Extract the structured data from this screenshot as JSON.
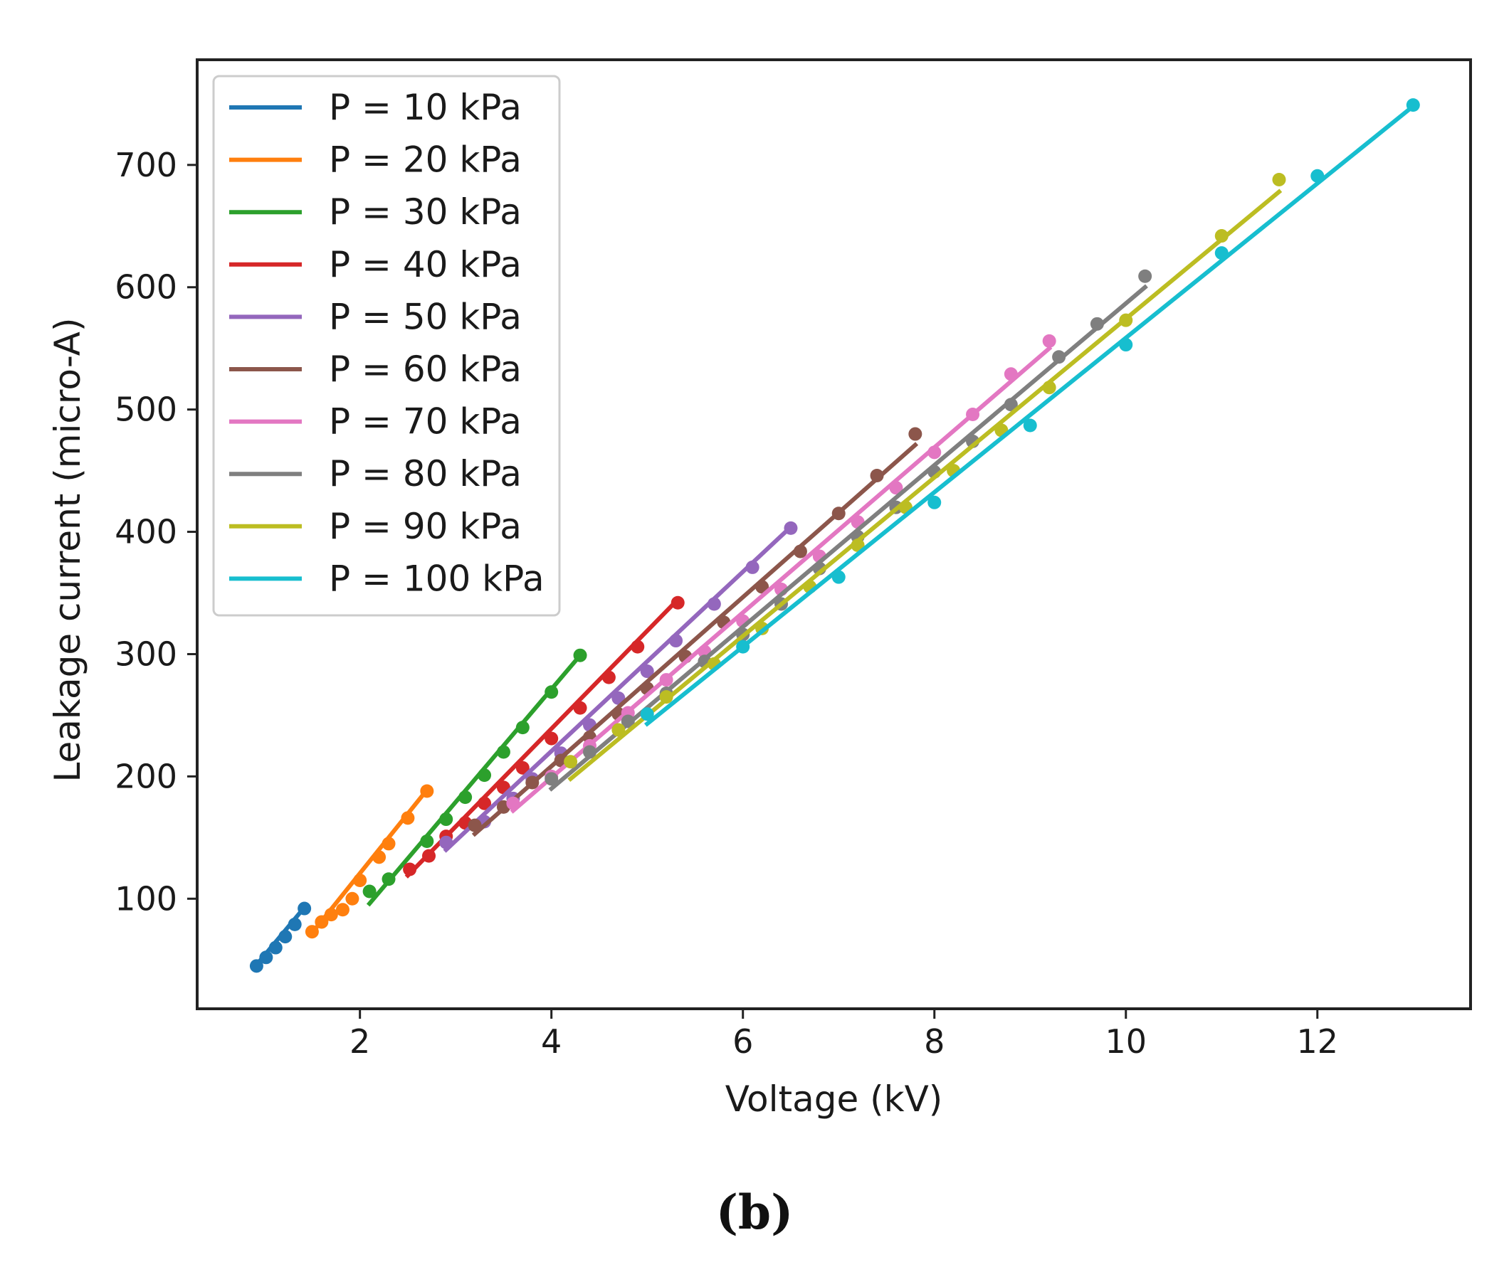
{
  "chart_data": {
    "type": "scatter",
    "title": "",
    "xlabel": "Voltage (kV)",
    "ylabel": "Leakage current (micro-A)",
    "xlim": [
      0.3,
      13.6
    ],
    "ylim": [
      10,
      786
    ],
    "xticks": [
      2,
      4,
      6,
      8,
      10,
      12
    ],
    "yticks": [
      100,
      200,
      300,
      400,
      500,
      600,
      700
    ],
    "legend_position": "top-left",
    "series": [
      {
        "name": "P = 10 kPa",
        "color": "#1f77b4",
        "fit": [
          [
            0.9,
            44
          ],
          [
            1.4,
            91
          ]
        ],
        "points": [
          [
            0.92,
            45
          ],
          [
            1.02,
            52
          ],
          [
            1.12,
            60
          ],
          [
            1.22,
            69
          ],
          [
            1.32,
            79
          ],
          [
            1.42,
            92
          ]
        ]
      },
      {
        "name": "P = 20 kPa",
        "color": "#ff7f0e",
        "fit": [
          [
            1.5,
            72
          ],
          [
            2.7,
            189
          ]
        ],
        "points": [
          [
            1.5,
            73
          ],
          [
            1.6,
            81
          ],
          [
            1.7,
            87
          ],
          [
            1.82,
            91
          ],
          [
            1.92,
            100
          ],
          [
            2.0,
            115
          ],
          [
            2.2,
            134
          ],
          [
            2.3,
            145
          ],
          [
            2.5,
            166
          ],
          [
            2.7,
            188
          ]
        ]
      },
      {
        "name": "P = 30 kPa",
        "color": "#2ca02c",
        "fit": [
          [
            2.1,
            96
          ],
          [
            4.3,
            299
          ]
        ],
        "points": [
          [
            2.1,
            106
          ],
          [
            2.3,
            116
          ],
          [
            2.7,
            147
          ],
          [
            2.9,
            165
          ],
          [
            3.1,
            183
          ],
          [
            3.3,
            201
          ],
          [
            3.5,
            220
          ],
          [
            3.7,
            240
          ],
          [
            4.0,
            269
          ],
          [
            4.3,
            299
          ]
        ]
      },
      {
        "name": "P = 40 kPa",
        "color": "#d62728",
        "fit": [
          [
            2.5,
            119
          ],
          [
            5.3,
            343
          ]
        ],
        "points": [
          [
            2.52,
            124
          ],
          [
            2.72,
            135
          ],
          [
            2.9,
            151
          ],
          [
            3.1,
            162
          ],
          [
            3.3,
            178
          ],
          [
            3.5,
            191
          ],
          [
            3.7,
            207
          ],
          [
            4.0,
            231
          ],
          [
            4.3,
            256
          ],
          [
            4.6,
            281
          ],
          [
            4.9,
            306
          ],
          [
            5.32,
            342
          ]
        ]
      },
      {
        "name": "P = 50 kPa",
        "color": "#9467bd",
        "fit": [
          [
            2.9,
            140
          ],
          [
            6.5,
            404
          ]
        ],
        "points": [
          [
            2.9,
            146
          ],
          [
            3.3,
            163
          ],
          [
            3.6,
            182
          ],
          [
            3.8,
            198
          ],
          [
            4.1,
            219
          ],
          [
            4.4,
            242
          ],
          [
            4.7,
            264
          ],
          [
            5.0,
            286
          ],
          [
            5.3,
            311
          ],
          [
            5.7,
            341
          ],
          [
            6.1,
            371
          ],
          [
            6.5,
            403
          ]
        ]
      },
      {
        "name": "P = 60 kPa",
        "color": "#8c564b",
        "fit": [
          [
            3.2,
            153
          ],
          [
            7.8,
            471
          ]
        ],
        "points": [
          [
            3.2,
            160
          ],
          [
            3.5,
            175
          ],
          [
            3.8,
            195
          ],
          [
            4.1,
            213
          ],
          [
            4.4,
            232
          ],
          [
            4.7,
            251
          ],
          [
            5.0,
            272
          ],
          [
            5.4,
            298
          ],
          [
            5.8,
            326
          ],
          [
            6.2,
            355
          ],
          [
            6.6,
            384
          ],
          [
            7.0,
            415
          ],
          [
            7.4,
            446
          ],
          [
            7.8,
            480
          ]
        ]
      },
      {
        "name": "P = 70 kPa",
        "color": "#e377c2",
        "fit": [
          [
            3.6,
            172
          ],
          [
            9.2,
            550
          ]
        ],
        "points": [
          [
            3.6,
            178
          ],
          [
            4.0,
            200
          ],
          [
            4.4,
            225
          ],
          [
            4.8,
            252
          ],
          [
            5.2,
            279
          ],
          [
            5.6,
            302
          ],
          [
            6.0,
            327
          ],
          [
            6.4,
            353
          ],
          [
            6.8,
            380
          ],
          [
            7.2,
            408
          ],
          [
            7.6,
            436
          ],
          [
            8.0,
            465
          ],
          [
            8.4,
            496
          ],
          [
            8.8,
            529
          ],
          [
            9.2,
            556
          ]
        ]
      },
      {
        "name": "P = 80 kPa",
        "color": "#7f7f7f",
        "fit": [
          [
            4.0,
            190
          ],
          [
            10.2,
            600
          ]
        ],
        "points": [
          [
            4.0,
            198
          ],
          [
            4.4,
            220
          ],
          [
            4.8,
            245
          ],
          [
            5.2,
            268
          ],
          [
            5.6,
            294
          ],
          [
            6.0,
            316
          ],
          [
            6.4,
            341
          ],
          [
            6.8,
            370
          ],
          [
            7.2,
            396
          ],
          [
            7.6,
            420
          ],
          [
            8.0,
            449
          ],
          [
            8.4,
            474
          ],
          [
            8.8,
            504
          ],
          [
            9.3,
            543
          ],
          [
            9.7,
            570
          ],
          [
            10.2,
            609
          ]
        ]
      },
      {
        "name": "P = 90 kPa",
        "color": "#bcbd22",
        "fit": [
          [
            4.2,
            198
          ],
          [
            11.6,
            678
          ]
        ],
        "points": [
          [
            4.2,
            212
          ],
          [
            4.7,
            238
          ],
          [
            5.2,
            265
          ],
          [
            5.7,
            292
          ],
          [
            6.2,
            321
          ],
          [
            6.7,
            355
          ],
          [
            7.2,
            389
          ],
          [
            7.7,
            420
          ],
          [
            8.2,
            450
          ],
          [
            8.7,
            483
          ],
          [
            9.2,
            518
          ],
          [
            10.0,
            573
          ],
          [
            11.0,
            642
          ],
          [
            11.6,
            688
          ]
        ]
      },
      {
        "name": "P = 100 kPa",
        "color": "#17becf",
        "fit": [
          [
            5.0,
            243
          ],
          [
            13.0,
            748
          ]
        ],
        "points": [
          [
            5.0,
            251
          ],
          [
            6.0,
            306
          ],
          [
            7.0,
            363
          ],
          [
            8.0,
            424
          ],
          [
            9.0,
            487
          ],
          [
            10.0,
            553
          ],
          [
            11.0,
            628
          ],
          [
            12.0,
            691
          ],
          [
            13.0,
            749
          ]
        ]
      }
    ]
  },
  "caption": "(b)"
}
